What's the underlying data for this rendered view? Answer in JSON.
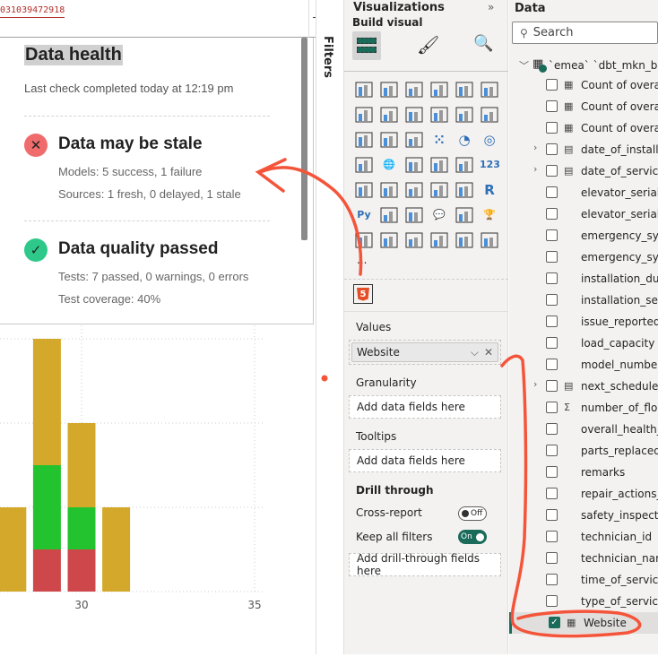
{
  "browser": {
    "url_fragment": "031039472918"
  },
  "health_card": {
    "title": "Data health",
    "last_check": "Last check completed today at 12:19 pm",
    "freshness": {
      "status": "Data may be stale",
      "icon": "x-icon",
      "color": "#f06b6b",
      "models": "Models: 5 success, 1 failure",
      "sources": "Sources: 1 fresh, 0 delayed, 1 stale"
    },
    "quality": {
      "status": "Data quality passed",
      "icon": "check-icon",
      "color": "#2ec98a",
      "tests": "Tests: 7 passed, 0 warnings, 0 errors",
      "coverage": "Test coverage: 40%"
    }
  },
  "filters_pane": {
    "label": "Filters"
  },
  "visualizations": {
    "title": "Visualizations",
    "build_visual": "Build visual",
    "icons": [
      "stacked-bar",
      "stacked-column",
      "clustered-bar",
      "clustered-column",
      "100-stacked-bar",
      "100-stacked-column",
      "line",
      "area",
      "stacked-area",
      "100-stacked-area",
      "line-column",
      "line-clustered-column",
      "ribbon",
      "waterfall",
      "funnel",
      "scatter",
      "pie",
      "donut",
      "treemap",
      "map",
      "filled-map",
      "azure-map",
      "gauge",
      "card",
      "multi-row-card",
      "kpi",
      "slicer",
      "table",
      "matrix",
      "r-visual",
      "python-visual",
      "key-influencers",
      "decomposition-tree",
      "qa",
      "narrative",
      "goals",
      "paginated",
      "smart-card",
      "smart-slicer",
      "power-apps",
      "power-automate",
      "power-automate-flow"
    ],
    "more": "...",
    "selected_visual": "html5-icon",
    "values_label": "Values",
    "values_field": "Website",
    "granularity_label": "Granularity",
    "granularity_placeholder": "Add data fields here",
    "tooltips_label": "Tooltips",
    "tooltips_placeholder": "Add data fields here",
    "drill_label": "Drill through",
    "cross_report": "Cross-report",
    "cross_report_state": "Off",
    "keep_filters": "Keep all filters",
    "keep_filters_state": "On",
    "drill_placeholder": "Add drill-through fields here",
    "accent": "#1b6b5a"
  },
  "data_pane": {
    "title": "Data",
    "search_placeholder": "Search",
    "table": "`emea` `dbt_mkn_bron...",
    "fields": [
      {
        "name": "Count of overal...",
        "type": "measure",
        "checked": false
      },
      {
        "name": "Count of overal...",
        "type": "measure",
        "checked": false
      },
      {
        "name": "Count of overal...",
        "type": "measure",
        "checked": false
      },
      {
        "name": "date_of_installa...",
        "type": "date",
        "checked": false,
        "expand": true
      },
      {
        "name": "date_of_service",
        "type": "date",
        "checked": false,
        "expand": true
      },
      {
        "name": "elevator_serial_...",
        "type": "",
        "checked": false
      },
      {
        "name": "elevator_serial_...",
        "type": "",
        "checked": false
      },
      {
        "name": "emergency_syst...",
        "type": "",
        "checked": false
      },
      {
        "name": "emergency_syst...",
        "type": "",
        "checked": false
      },
      {
        "name": "installation_dur...",
        "type": "",
        "checked": false
      },
      {
        "name": "installation_serv...",
        "type": "",
        "checked": false
      },
      {
        "name": "issue_reported",
        "type": "",
        "checked": false
      },
      {
        "name": "load_capacity",
        "type": "",
        "checked": false
      },
      {
        "name": "model_number",
        "type": "",
        "checked": false
      },
      {
        "name": "next_scheduled...",
        "type": "date",
        "checked": false,
        "expand": true
      },
      {
        "name": "number_of_floo...",
        "type": "sum",
        "checked": false
      },
      {
        "name": "overall_health_c...",
        "type": "",
        "checked": false
      },
      {
        "name": "parts_replaced",
        "type": "",
        "checked": false
      },
      {
        "name": "remarks",
        "type": "",
        "checked": false
      },
      {
        "name": "repair_actions_t...",
        "type": "",
        "checked": false
      },
      {
        "name": "safety_inspectio...",
        "type": "",
        "checked": false
      },
      {
        "name": "technician_id",
        "type": "",
        "checked": false
      },
      {
        "name": "technician_name",
        "type": "",
        "checked": false
      },
      {
        "name": "time_of_service",
        "type": "",
        "checked": false
      },
      {
        "name": "type_of_service",
        "type": "",
        "checked": false
      },
      {
        "name": "Website",
        "type": "measure",
        "checked": true
      }
    ]
  },
  "chart_data": {
    "type": "bar",
    "stacked": true,
    "x": [
      28,
      29,
      30,
      31
    ],
    "xticks": [
      "30",
      "35"
    ],
    "series": [
      {
        "color": "#cd474b",
        "values": [
          0,
          0.5,
          0.5,
          0
        ]
      },
      {
        "color": "#22c32e",
        "values": [
          0,
          1,
          0.5,
          0
        ]
      },
      {
        "color": "#d4a82a",
        "values": [
          1,
          1.5,
          1,
          1
        ]
      }
    ],
    "grid": true
  }
}
